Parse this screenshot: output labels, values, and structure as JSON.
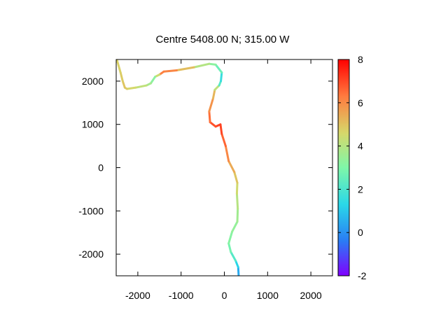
{
  "chart_data": {
    "type": "line",
    "title": "Centre 5408.00 N; 315.00  W",
    "xlabel": "",
    "ylabel": "",
    "xlim": [
      -2500,
      2500
    ],
    "ylim": [
      -2500,
      2500
    ],
    "xticks": [
      -2000,
      -1000,
      0,
      1000,
      2000
    ],
    "yticks": [
      -2000,
      -1000,
      0,
      1000,
      2000
    ],
    "xtick_labels": [
      "-2000",
      "-1000",
      "0",
      "1000",
      "2000"
    ],
    "ytick_labels": [
      "-2000",
      "-1000",
      "0",
      "1000",
      "2000"
    ],
    "grid": false,
    "legend": "none",
    "colorbar": {
      "range": [
        -2,
        8
      ],
      "ticks": [
        -2,
        0,
        2,
        4,
        6,
        8
      ],
      "tick_labels": [
        "-2",
        "0",
        "2",
        "4",
        "6",
        "8"
      ],
      "colormap": "rainbow",
      "colors": [
        "#7f00ff",
        "#2a7bf5",
        "#2ad8e8",
        "#7ff7a9",
        "#d6d86a",
        "#ff7b3f",
        "#ff0000"
      ]
    },
    "series": [
      {
        "points": [
          {
            "x": 330,
            "y": -2480,
            "c": 0.2
          },
          {
            "x": 320,
            "y": -2300,
            "c": 0.8
          },
          {
            "x": 260,
            "y": -2150,
            "c": 1.8
          },
          {
            "x": 150,
            "y": -1950,
            "c": 2.6
          },
          {
            "x": 100,
            "y": -1750,
            "c": 3.0
          },
          {
            "x": 180,
            "y": -1480,
            "c": 3.3
          },
          {
            "x": 300,
            "y": -1250,
            "c": 3.5
          },
          {
            "x": 310,
            "y": -950,
            "c": 3.8
          },
          {
            "x": 290,
            "y": -600,
            "c": 4.3
          },
          {
            "x": 300,
            "y": -350,
            "c": 4.8
          },
          {
            "x": 230,
            "y": -100,
            "c": 5.2
          },
          {
            "x": 100,
            "y": 150,
            "c": 5.8
          },
          {
            "x": 30,
            "y": 500,
            "c": 6.4
          },
          {
            "x": -60,
            "y": 780,
            "c": 6.9
          },
          {
            "x": -90,
            "y": 1000,
            "c": 7.2
          },
          {
            "x": -200,
            "y": 950,
            "c": 7.0
          },
          {
            "x": -330,
            "y": 1050,
            "c": 6.8
          },
          {
            "x": -350,
            "y": 1300,
            "c": 6.2
          },
          {
            "x": -260,
            "y": 1600,
            "c": 5.6
          },
          {
            "x": -220,
            "y": 1800,
            "c": 5.0
          },
          {
            "x": -120,
            "y": 1900,
            "c": 3.5
          },
          {
            "x": -80,
            "y": 2000,
            "c": 1.0
          },
          {
            "x": -60,
            "y": 2200,
            "c": 2.2
          },
          {
            "x": -200,
            "y": 2380,
            "c": 3.0
          },
          {
            "x": -350,
            "y": 2400,
            "c": 3.5
          },
          {
            "x": -700,
            "y": 2320,
            "c": 4.5
          },
          {
            "x": -1100,
            "y": 2250,
            "c": 5.8
          },
          {
            "x": -1400,
            "y": 2220,
            "c": 6.5
          },
          {
            "x": -1500,
            "y": 2150,
            "c": 6.0
          },
          {
            "x": -1600,
            "y": 2100,
            "c": 3.0
          },
          {
            "x": -1700,
            "y": 1950,
            "c": 3.5
          },
          {
            "x": -1800,
            "y": 1900,
            "c": 4.0
          },
          {
            "x": -2050,
            "y": 1850,
            "c": 4.5
          },
          {
            "x": -2250,
            "y": 1820,
            "c": 4.8
          },
          {
            "x": -2300,
            "y": 1850,
            "c": 5.0
          },
          {
            "x": -2350,
            "y": 2000,
            "c": 5.0
          },
          {
            "x": -2400,
            "y": 2200,
            "c": 4.8
          },
          {
            "x": -2480,
            "y": 2480,
            "c": 4.8
          }
        ]
      }
    ]
  }
}
